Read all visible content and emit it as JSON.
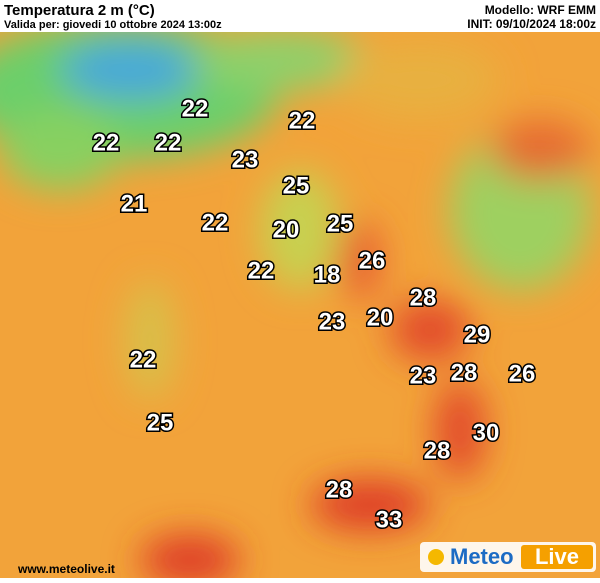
{
  "header": {
    "title": "Temperatura 2 m (°C)",
    "subtitle": "Valida per: giovedi 10 ottobre 2024 13:00z",
    "model": "Modello: WRF EMM",
    "init": "INIT: 09/10/2024 18:00z"
  },
  "map": {
    "labels": [
      22,
      22,
      22,
      22,
      23,
      25,
      21,
      22,
      25,
      20,
      26,
      22,
      18,
      28,
      23,
      20,
      29,
      22,
      23,
      28,
      26,
      25,
      30,
      28,
      28,
      33
    ]
  },
  "footer": {
    "website": "www.meteolive.it",
    "logo_left": "Meteo",
    "logo_right": "Live"
  }
}
